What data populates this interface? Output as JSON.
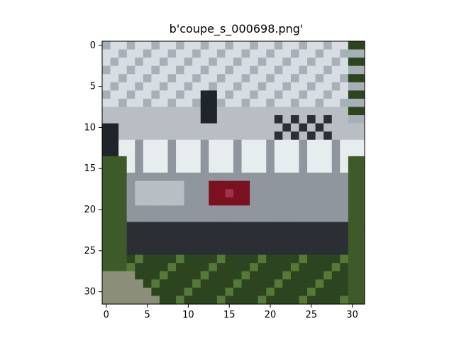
{
  "figure": {
    "title": "b'coupe_s_000698.png'"
  },
  "image": {
    "description_class": "coupe",
    "grid_size": [
      32,
      32
    ],
    "palette": {
      "sky_light": "#d8dde3",
      "sky_gray": "#a7b0b7",
      "shadow_dark": "#1f252a",
      "car_silver": "#b9bec4",
      "car_highlight": "#e7ecef",
      "car_mid": "#8f969d",
      "car_dark": "#2b2f33",
      "plate_red": "#7a1020",
      "plate_red_light": "#a23344",
      "grass_dark": "#2d4420",
      "grass_mid": "#3e5a2a",
      "grass_light": "#567a36",
      "ground_bright": "#8b8f79"
    }
  },
  "axes": {
    "x_ticks": [
      "0",
      "5",
      "10",
      "15",
      "20",
      "25",
      "30"
    ],
    "y_ticks": [
      "0",
      "5",
      "10",
      "15",
      "20",
      "25",
      "30"
    ]
  }
}
